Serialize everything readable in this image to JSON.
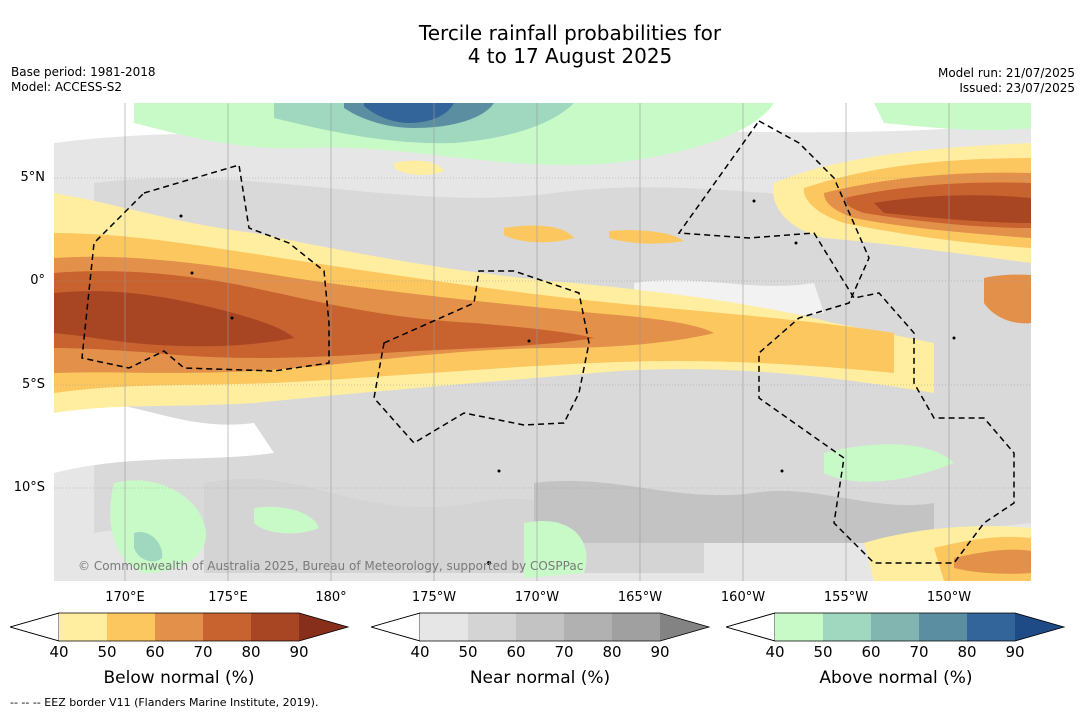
{
  "title_line1": "Tercile rainfall probabilities for",
  "title_line2": "4 to 17 August 2025",
  "base_period": "Base period: 1981-2018",
  "model": "Model: ACCESS-S2",
  "model_run": "Model run: 21/07/2025",
  "issued": "Issued: 23/07/2025",
  "latitude_labels": [
    "5°N",
    "0°",
    "5°S",
    "10°S"
  ],
  "longitude_labels": [
    "170°E",
    "175°E",
    "180°",
    "175°W",
    "170°W",
    "165°W",
    "160°W",
    "155°W",
    "150°W"
  ],
  "copyright": "© Commonwealth of Australia 2025, Bureau of Meteorology, supported by COSPPac",
  "eez_note": "--  --  -- EEZ border V11 (Flanders Marine Institute, 2019).",
  "colorbars": [
    {
      "label": "Below normal (%)",
      "ticks": [
        "40",
        "50",
        "60",
        "70",
        "80",
        "90"
      ],
      "colors": [
        "#ffeea0",
        "#fcc75e",
        "#e2904a",
        "#c8622f",
        "#a84624",
        "#882f1c"
      ]
    },
    {
      "label": "Near normal (%)",
      "ticks": [
        "40",
        "50",
        "60",
        "70",
        "80",
        "90"
      ],
      "colors": [
        "#e6e6e6",
        "#d4d4d4",
        "#c3c3c3",
        "#b1b1b1",
        "#a0a0a0",
        "#838383"
      ]
    },
    {
      "label": "Above normal (%)",
      "ticks": [
        "40",
        "50",
        "60",
        "70",
        "80",
        "90"
      ],
      "colors": [
        "#c8fac8",
        "#a0d7bf",
        "#82b5b0",
        "#5a8ea0",
        "#34659a",
        "#1e4b86"
      ]
    }
  ]
}
